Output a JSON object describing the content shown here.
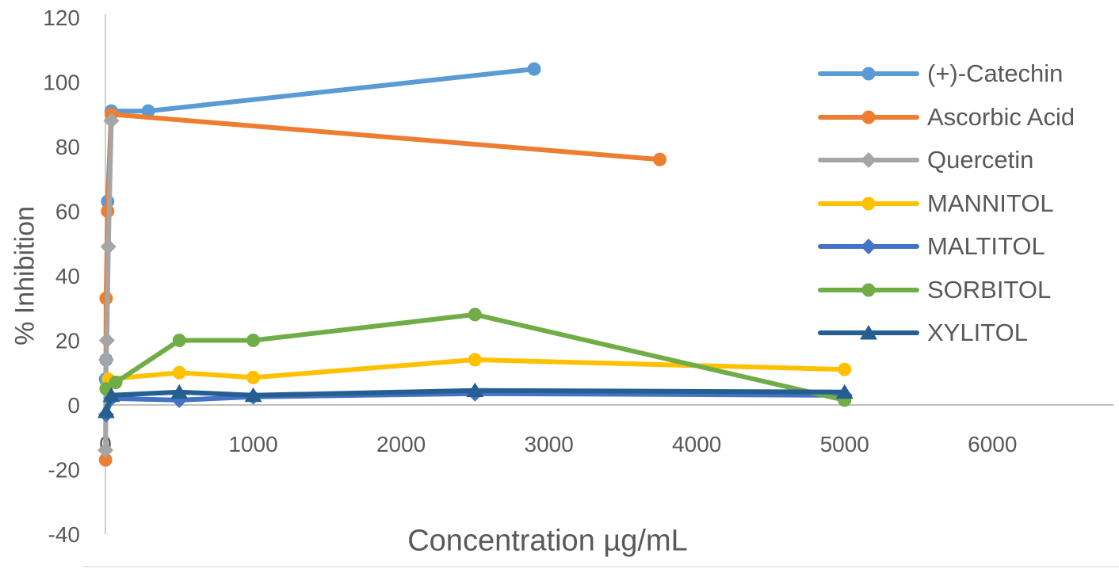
{
  "chart_data": {
    "type": "line",
    "title": "",
    "xlabel": "Concentration µg/mL",
    "ylabel": "% Inhibition",
    "xlim": [
      0,
      6820
    ],
    "ylim": [
      -40,
      120
    ],
    "xticks": [
      0,
      1000,
      2000,
      3000,
      4000,
      5000,
      6000
    ],
    "yticks": [
      120,
      100,
      80,
      60,
      40,
      20,
      0,
      -20,
      -40
    ],
    "grid": false,
    "legend_position": "right",
    "axis_color": "#BFBFBF",
    "text_color": "#595959",
    "series": [
      {
        "name": "(+)-Catechin",
        "color": "#5B9BD5",
        "marker": "circle",
        "points": [
          [
            1,
            8
          ],
          [
            5,
            14
          ],
          [
            15,
            63
          ],
          [
            40,
            91
          ],
          [
            290,
            91
          ],
          [
            2900,
            104
          ]
        ]
      },
      {
        "name": "Ascorbic Acid",
        "color": "#ED7D31",
        "marker": "circle",
        "points": [
          [
            1,
            -17
          ],
          [
            5,
            33
          ],
          [
            15,
            60
          ],
          [
            40,
            90
          ],
          [
            3750,
            76
          ]
        ]
      },
      {
        "name": "Quercetin",
        "color": "#A5A5A5",
        "marker": "diamond",
        "points": [
          [
            1,
            -14
          ],
          [
            5,
            14
          ],
          [
            10,
            20
          ],
          [
            20,
            49
          ],
          [
            40,
            88
          ]
        ]
      },
      {
        "name": "MANNITOL",
        "color": "#FFC000",
        "marker": "circle",
        "points": [
          [
            20,
            8
          ],
          [
            500,
            10
          ],
          [
            1000,
            8.5
          ],
          [
            2500,
            14
          ],
          [
            5000,
            11
          ]
        ]
      },
      {
        "name": "MALTITOL",
        "color": "#4472C4",
        "marker": "diamond",
        "points": [
          [
            5,
            -3
          ],
          [
            40,
            2
          ],
          [
            500,
            1.5
          ],
          [
            1000,
            2.5
          ],
          [
            2500,
            3.5
          ],
          [
            5000,
            3
          ]
        ]
      },
      {
        "name": "SORBITOL",
        "color": "#70AD47",
        "marker": "circle",
        "points": [
          [
            5,
            5
          ],
          [
            70,
            7
          ],
          [
            500,
            20
          ],
          [
            1000,
            20
          ],
          [
            2500,
            28
          ],
          [
            5000,
            1.5
          ]
        ]
      },
      {
        "name": "XYLITOL",
        "color": "#255E91",
        "marker": "triangle",
        "points": [
          [
            5,
            -2
          ],
          [
            40,
            3
          ],
          [
            500,
            4
          ],
          [
            1000,
            3
          ],
          [
            2500,
            4.5
          ],
          [
            5000,
            4
          ]
        ]
      }
    ]
  }
}
